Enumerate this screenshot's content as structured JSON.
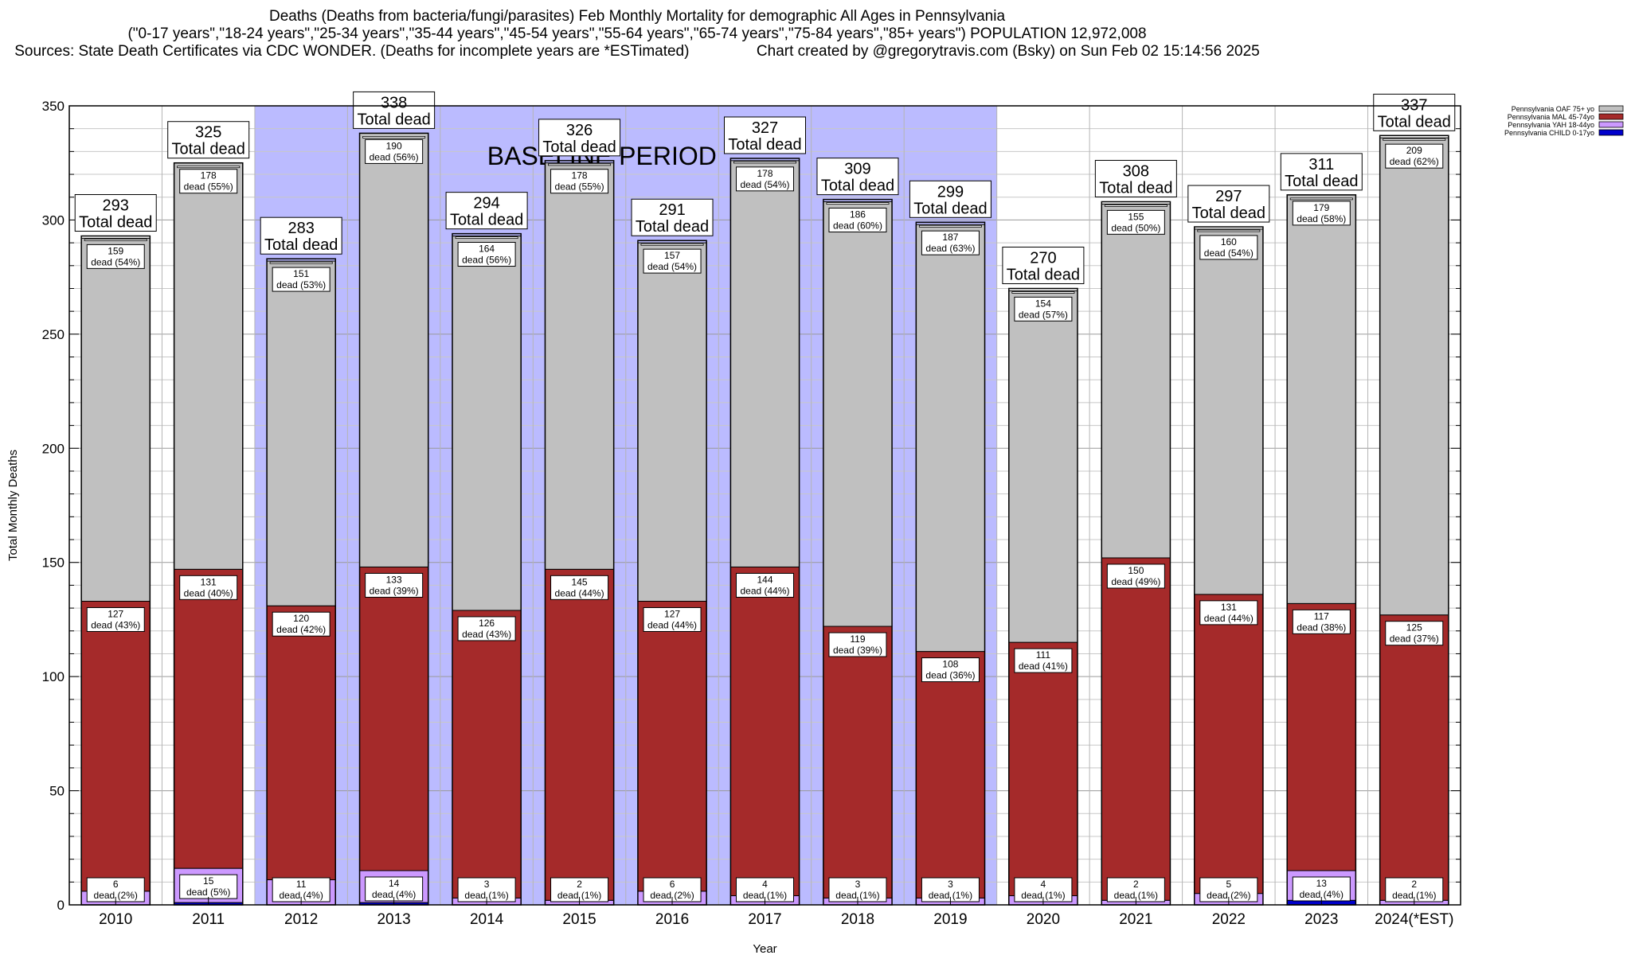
{
  "chart_data": {
    "type": "bar",
    "stacked": true,
    "title_lines": [
      "Deaths (Deaths from bacteria/fungi/parasites) Feb Monthly Mortality for demographic All Ages in Pennsylvania",
      "(\"0-17 years\",\"18-24 years\",\"25-34 years\",\"35-44 years\",\"45-54 years\",\"55-64 years\",\"65-74 years\",\"75-84 years\",\"85+ years\") POPULATION 12,972,008",
      "Sources: State Death Certificates via CDC WONDER. (Deaths for incomplete years are *ESTimated)                Chart created by @gregorytravis.com (Bsky) on Sun Feb 02 15:14:56 2025"
    ],
    "xlabel": "Year",
    "ylabel": "Total Monthly Deaths",
    "ylim": [
      0,
      350
    ],
    "yticks": [
      0,
      50,
      100,
      150,
      200,
      250,
      300,
      350
    ],
    "grid": true,
    "baseline_label": "BASELINE PERIOD",
    "baseline_range": [
      "2012",
      "2019"
    ],
    "total_suffix": "Total dead",
    "dead_prefix": "dead",
    "categories": [
      "2010",
      "2011",
      "2012",
      "2013",
      "2014",
      "2015",
      "2016",
      "2017",
      "2018",
      "2019",
      "2020",
      "2021",
      "2022",
      "2023",
      "2024(*EST)"
    ],
    "totals": [
      293,
      325,
      283,
      338,
      294,
      326,
      291,
      327,
      309,
      299,
      270,
      308,
      297,
      311,
      337
    ],
    "series": [
      {
        "name": "Pennsylvania CHILD 0-17yo",
        "color": "#0000cc",
        "values": [
          0,
          1,
          0,
          1,
          0,
          0,
          0,
          0,
          0,
          0,
          0,
          0,
          0,
          2,
          0
        ],
        "pcts": [],
        "labels": []
      },
      {
        "name": "Pennsylvania YAH 18-44yo",
        "color": "#cc99ff",
        "values": [
          6,
          15,
          11,
          14,
          3,
          2,
          6,
          4,
          3,
          3,
          4,
          2,
          5,
          13,
          2
        ],
        "pcts": [
          "2%",
          "5%",
          "4%",
          "4%",
          "1%",
          "1%",
          "2%",
          "1%",
          "1%",
          "1%",
          "1%",
          "1%",
          "2%",
          "4%",
          "1%"
        ]
      },
      {
        "name": "Pennsylvania MAL 45-74yo",
        "color": "#a52a2a",
        "values": [
          127,
          131,
          120,
          133,
          126,
          145,
          127,
          144,
          119,
          108,
          111,
          150,
          131,
          117,
          125
        ],
        "pcts": [
          "43%",
          "40%",
          "42%",
          "39%",
          "43%",
          "44%",
          "44%",
          "44%",
          "39%",
          "36%",
          "41%",
          "49%",
          "44%",
          "38%",
          "37%"
        ]
      },
      {
        "name": "Pennsylvania OAF 75+ yo",
        "color": "#c0c0c0",
        "values": [
          159,
          178,
          151,
          190,
          164,
          178,
          157,
          178,
          186,
          187,
          154,
          155,
          160,
          179,
          209
        ],
        "pcts": [
          "54%",
          "55%",
          "53%",
          "56%",
          "56%",
          "55%",
          "54%",
          "54%",
          "60%",
          "63%",
          "57%",
          "50%",
          "54%",
          "58%",
          "62%"
        ]
      }
    ],
    "legend_order": [
      "Pennsylvania OAF 75+ yo",
      "Pennsylvania MAL 45-74yo",
      "Pennsylvania YAH 18-44yo",
      "Pennsylvania CHILD 0-17yo"
    ],
    "legend_position": "top-right"
  }
}
